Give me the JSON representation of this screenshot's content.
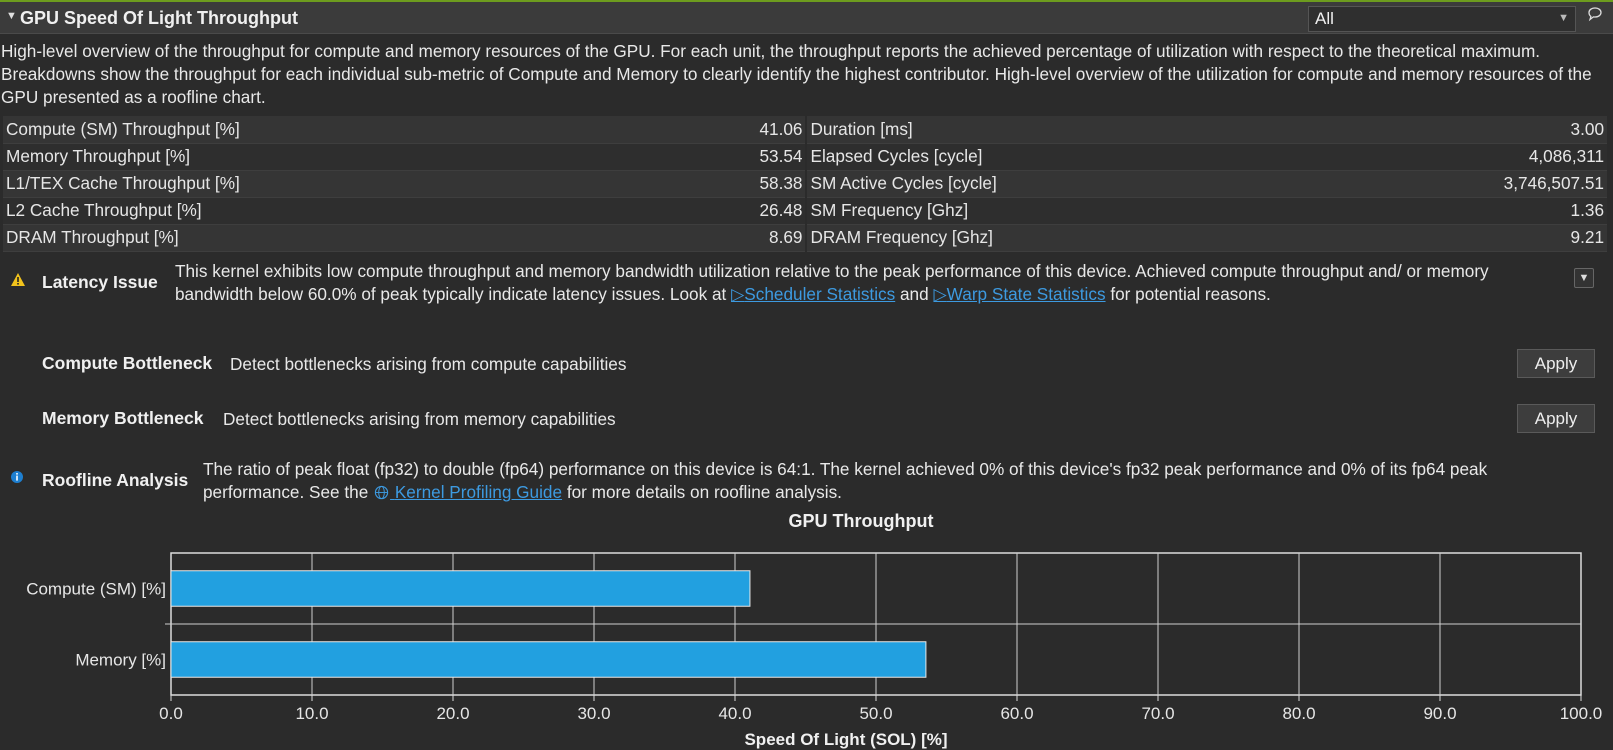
{
  "section": {
    "title": "GPU Speed Of Light Throughput",
    "caret_icon": "caret-down-icon",
    "filter_value": "All",
    "description": "High-level overview of the throughput for compute and memory resources of the GPU. For each unit, the throughput reports the achieved percentage of utilization with respect to the theoretical maximum. Breakdowns show the throughput for each individual sub-metric of Compute and Memory to clearly identify the highest contributor. High-level overview of the utilization for compute and memory resources of the GPU presented as a roofline chart."
  },
  "metrics": [
    {
      "left_label": "Compute (SM) Throughput [%]",
      "left_value": "41.06",
      "right_label": "Duration [ms]",
      "right_value": "3.00"
    },
    {
      "left_label": "Memory Throughput [%]",
      "left_value": "53.54",
      "right_label": "Elapsed Cycles [cycle]",
      "right_value": "4,086,311"
    },
    {
      "left_label": "L1/TEX Cache Throughput [%]",
      "left_value": "58.38",
      "right_label": "SM Active Cycles [cycle]",
      "right_value": "3,746,507.51"
    },
    {
      "left_label": "L2 Cache Throughput [%]",
      "left_value": "26.48",
      "right_label": "SM Frequency [Ghz]",
      "right_value": "1.36"
    },
    {
      "left_label": "DRAM Throughput [%]",
      "left_value": "8.69",
      "right_label": "DRAM Frequency [Ghz]",
      "right_value": "9.21"
    }
  ],
  "rules": {
    "latency": {
      "name": "Latency Issue",
      "text_part1": "This kernel exhibits low compute throughput and memory bandwidth utilization relative to the peak performance of this device. Achieved compute throughput and/ or memory bandwidth below 60.0% of peak typically indicate latency issues. Look at ",
      "link1": "Scheduler Statistics",
      "text_part2": " and ",
      "link2": "Warp State Statistics",
      "text_part3": " for potential reasons."
    },
    "compute": {
      "name": "Compute Bottleneck",
      "text": "Detect bottlenecks arising from compute capabilities",
      "button": "Apply"
    },
    "memory": {
      "name": "Memory Bottleneck",
      "text": "Detect bottlenecks arising from memory capabilities",
      "button": "Apply"
    },
    "roofline": {
      "name": "Roofline Analysis",
      "text_part1": "The ratio of peak float (fp32) to double (fp64) performance on this device is 64:1. The kernel achieved 0% of this device's fp32 peak performance and 0% of its fp64 peak performance. See the ",
      "link": "Kernel Profiling Guide",
      "text_part2": " for more details on roofline analysis."
    }
  },
  "chart_data": {
    "type": "bar",
    "orientation": "horizontal",
    "title": "GPU Throughput",
    "categories": [
      "Compute (SM) [%]",
      "Memory [%]"
    ],
    "values": [
      41.06,
      53.54
    ],
    "xlabel": "Speed Of Light (SOL) [%]",
    "xlim": [
      0,
      100
    ],
    "ticks": [
      "0.0",
      "10.0",
      "20.0",
      "30.0",
      "40.0",
      "50.0",
      "60.0",
      "70.0",
      "80.0",
      "90.0",
      "100.0"
    ],
    "grid": true,
    "bar_color": "#22a0e0"
  }
}
